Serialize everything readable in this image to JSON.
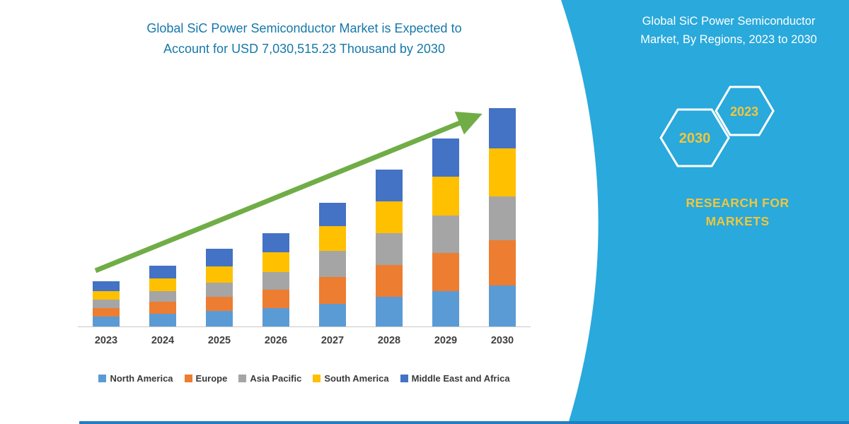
{
  "left_panel": {
    "title_line1": "Global SiC Power Semiconductor Market is Expected to",
    "title_line2": "Account for USD 7,030,515.23 Thousand by 2030"
  },
  "chart_data": {
    "type": "bar",
    "stacked": true,
    "title": "Global SiC Power Semiconductor Market is Expected to Account for USD 7,030,515.23 Thousand by 2030",
    "xlabel": "",
    "ylabel": "",
    "y_axis_visible": false,
    "values_unit": "relative height (no value axis shown in source image)",
    "categories": [
      "2023",
      "2024",
      "2025",
      "2026",
      "2027",
      "2028",
      "2029",
      "2030"
    ],
    "series": [
      {
        "name": "North America",
        "color": "#5B9BD5",
        "values": [
          14,
          18,
          22,
          26,
          32,
          42,
          50,
          58
        ]
      },
      {
        "name": "Europe",
        "color": "#ED7D31",
        "values": [
          12,
          17,
          20,
          26,
          38,
          45,
          54,
          64
        ]
      },
      {
        "name": "Asia Pacific",
        "color": "#A5A5A5",
        "values": [
          12,
          15,
          20,
          25,
          37,
          45,
          53,
          62
        ]
      },
      {
        "name": "South America",
        "color": "#FFC000",
        "values": [
          12,
          18,
          23,
          28,
          35,
          45,
          55,
          68
        ]
      },
      {
        "name": "Middle East and Africa",
        "color": "#4472C4",
        "values": [
          14,
          18,
          25,
          27,
          33,
          45,
          54,
          57
        ]
      }
    ],
    "totals_relative": [
      64,
      86,
      110,
      132,
      175,
      222,
      266,
      309
    ],
    "stated_total_2030": "USD 7,030,515.23 Thousand",
    "legend_position": "bottom",
    "annotations": [
      "green upward trend arrow across bars"
    ],
    "arrow_color": "#70AD47"
  },
  "right_panel": {
    "title_line1": "Global SiC Power Semiconductor",
    "title_line2": "Market, By Regions, 2023 to 2030",
    "hexagons": [
      {
        "label": "2030"
      },
      {
        "label": "2023"
      }
    ],
    "brand_line1": "RESEARCH FOR",
    "brand_line2": "MARKETS",
    "colors": {
      "background": "#29A9DC",
      "accent_yellow": "#F0C63C",
      "title_text": "#FFFFFF"
    }
  },
  "colors": {
    "chart_title": "#1778A9",
    "axis_line": "#C9C9C9",
    "x_labels": "#3F3F3F"
  }
}
